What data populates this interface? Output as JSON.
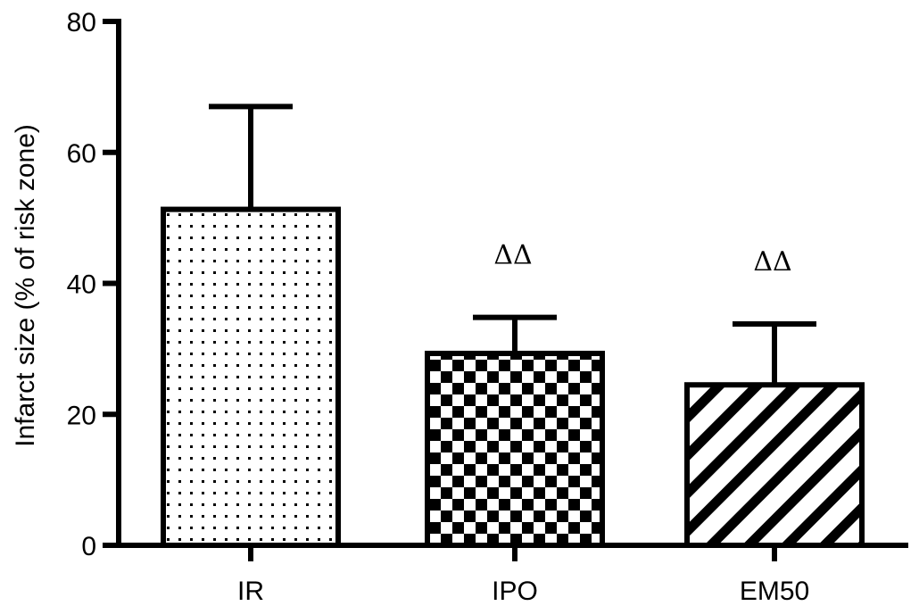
{
  "chart_data": {
    "type": "bar",
    "title": "",
    "xlabel": "",
    "ylabel": "Infarct size (% of risk zone)",
    "ylim": [
      0,
      80
    ],
    "yticks": [
      0,
      20,
      40,
      60,
      80
    ],
    "grid": false,
    "categories": [
      "IR",
      "IPO",
      "EM50"
    ],
    "values": [
      51.3,
      29.3,
      24.5
    ],
    "error": [
      15.7,
      5.5,
      9.3
    ],
    "fill_patterns": [
      "dots",
      "checkerboard",
      "diagonal-stripes"
    ],
    "annotations": [
      "",
      "ΔΔ",
      "ΔΔ"
    ],
    "colors": {
      "stroke": "#000000",
      "background": "#ffffff"
    }
  }
}
